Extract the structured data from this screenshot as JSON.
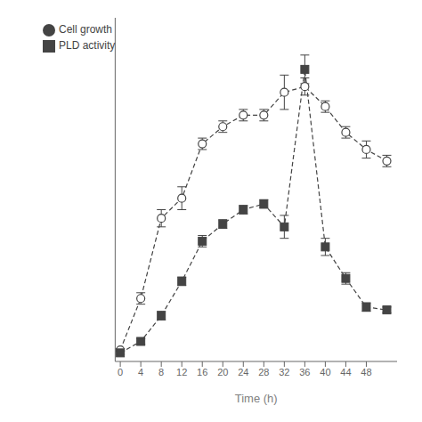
{
  "chart_data": {
    "type": "line",
    "xlabel": "Time (h)",
    "x": [
      0,
      4,
      8,
      12,
      16,
      20,
      24,
      28,
      32,
      36,
      40,
      44,
      48,
      52
    ],
    "series": [
      {
        "name": "Cell growth",
        "color": "#444444",
        "marker": "hollow_circle",
        "line_style": "dashed",
        "values": [
          0.02,
          0.2,
          0.48,
          0.55,
          0.74,
          0.8,
          0.84,
          0.84,
          0.92,
          0.94,
          0.87,
          0.78,
          0.72,
          0.68
        ],
        "errors": [
          0.005,
          0.02,
          0.03,
          0.04,
          0.02,
          0.02,
          0.02,
          0.02,
          0.06,
          0.03,
          0.02,
          0.02,
          0.03,
          0.02
        ]
      },
      {
        "name": "PLD activity",
        "color": "#444444",
        "marker": "square",
        "line_style": "dashed",
        "values": [
          0.01,
          0.05,
          0.14,
          0.26,
          0.4,
          0.46,
          0.51,
          0.53,
          0.45,
          1.0,
          0.38,
          0.27,
          0.17,
          0.16
        ],
        "errors": [
          0.005,
          0.01,
          0.015,
          0.015,
          0.02,
          0.015,
          0.015,
          0.015,
          0.04,
          0.05,
          0.03,
          0.02,
          0.015,
          0.01
        ]
      }
    ],
    "xlim": [
      -1,
      54
    ],
    "xticks": [
      0,
      4,
      8,
      12,
      16,
      20,
      24,
      28,
      32,
      36,
      40,
      44,
      48
    ],
    "ylim": [
      -0.02,
      1.18
    ],
    "yticks": [],
    "tick_labels": "x",
    "legend": "upper left",
    "grid": false
  }
}
